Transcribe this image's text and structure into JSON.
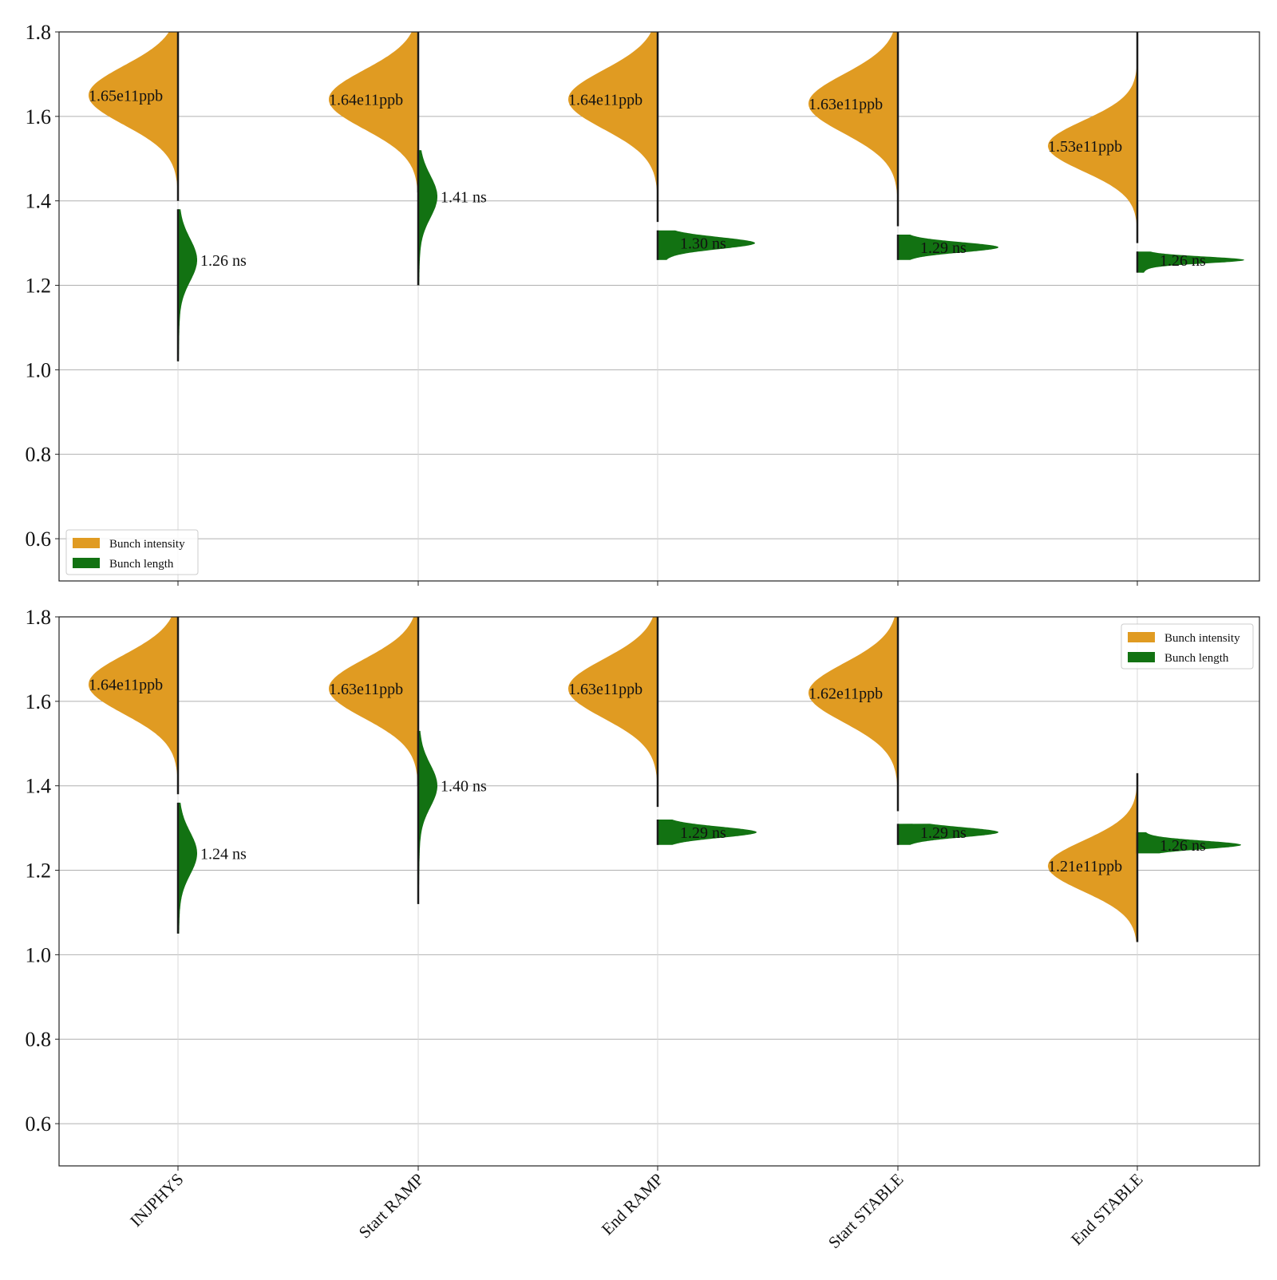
{
  "colors": {
    "intensity": "#e09b22",
    "length": "#127212",
    "grid": "#b0b0b0",
    "axis": "#222222",
    "legend_border": "#cccccc"
  },
  "chart_data": [
    {
      "type": "violin",
      "ylim": [
        0.5,
        1.8
      ],
      "yticks": [
        "0.6",
        "0.8",
        "1.0",
        "1.2",
        "1.4",
        "1.6",
        "1.8"
      ],
      "categories": [
        "INJPHYS",
        "Start RAMP",
        "End RAMP",
        "Start STABLE",
        "End STABLE"
      ],
      "show_category_labels": false,
      "grid": "horizontal",
      "legend": {
        "placement": "lower-left",
        "entries": [
          "Bunch intensity",
          "Bunch length"
        ]
      },
      "series": [
        {
          "name": "Bunch intensity",
          "color_key": "intensity",
          "side": "left",
          "medians": [
            1.65,
            1.64,
            1.64,
            1.63,
            1.53
          ],
          "labels": [
            "1.65e11ppb",
            "1.64e11ppb",
            "1.64e11ppb",
            "1.63e11ppb",
            "1.53e11ppb"
          ],
          "ranges": [
            [
              1.4,
              1.8
            ],
            [
              1.42,
              1.8
            ],
            [
              1.35,
              1.8
            ],
            [
              1.34,
              1.8
            ],
            [
              1.3,
              1.8
            ]
          ],
          "spread": [
            0.07,
            0.07,
            0.07,
            0.07,
            0.06
          ]
        },
        {
          "name": "Bunch length",
          "color_key": "length",
          "side": "right",
          "medians": [
            1.26,
            1.41,
            1.3,
            1.29,
            1.26
          ],
          "labels": [
            "1.26 ns",
            "1.41 ns",
            "1.30 ns",
            "1.29 ns",
            "1.26 ns"
          ],
          "ranges": [
            [
              1.02,
              1.38
            ],
            [
              1.2,
              1.52
            ],
            [
              1.26,
              1.33
            ],
            [
              1.26,
              1.32
            ],
            [
              1.23,
              1.28
            ]
          ],
          "spread": [
            0.05,
            0.05,
            0.014,
            0.012,
            0.008
          ]
        }
      ]
    },
    {
      "type": "violin",
      "ylim": [
        0.5,
        1.8
      ],
      "yticks": [
        "0.6",
        "0.8",
        "1.0",
        "1.2",
        "1.4",
        "1.6",
        "1.8"
      ],
      "categories": [
        "INJPHYS",
        "Start RAMP",
        "End RAMP",
        "Start STABLE",
        "End STABLE"
      ],
      "show_category_labels": true,
      "grid": "horizontal",
      "legend": {
        "placement": "top-right",
        "entries": [
          "Bunch intensity",
          "Bunch length"
        ]
      },
      "series": [
        {
          "name": "Bunch intensity",
          "color_key": "intensity",
          "side": "left",
          "medians": [
            1.64,
            1.63,
            1.63,
            1.62,
            1.21
          ],
          "labels": [
            "1.64e11ppb",
            "1.63e11ppb",
            "1.63e11ppb",
            "1.62e11ppb",
            "1.21e11ppb"
          ],
          "ranges": [
            [
              1.38,
              1.8
            ],
            [
              1.4,
              1.8
            ],
            [
              1.35,
              1.8
            ],
            [
              1.34,
              1.8
            ],
            [
              1.03,
              1.43
            ]
          ],
          "spread": [
            0.07,
            0.07,
            0.07,
            0.07,
            0.06
          ]
        },
        {
          "name": "Bunch length",
          "color_key": "length",
          "side": "right",
          "medians": [
            1.24,
            1.4,
            1.29,
            1.29,
            1.26
          ],
          "labels": [
            "1.24 ns",
            "1.40 ns",
            "1.29 ns",
            "1.29 ns",
            "1.26 ns"
          ],
          "ranges": [
            [
              1.05,
              1.36
            ],
            [
              1.12,
              1.53
            ],
            [
              1.26,
              1.32
            ],
            [
              1.26,
              1.31
            ],
            [
              1.24,
              1.29
            ]
          ],
          "spread": [
            0.05,
            0.05,
            0.013,
            0.012,
            0.01
          ]
        }
      ]
    }
  ]
}
